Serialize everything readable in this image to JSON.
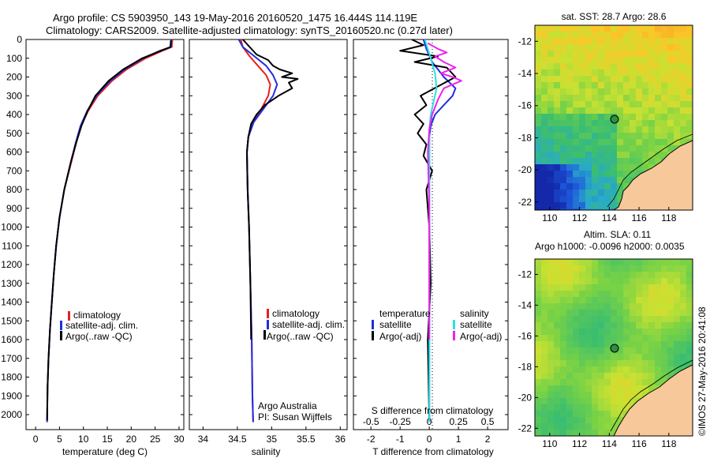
{
  "header": {
    "line1": "Argo profile: CS 5903950_143 19-May-2016 20160520_1475 16.444S 114.119E",
    "line2": "Climatology: CARS2009. Satellite-adjusted climatology: synTS_20160520.nc (0.27d later)"
  },
  "colors": {
    "clim": "#e8201c",
    "sat": "#1f2ee0",
    "argo": "#000000",
    "sat_s": "#2de0e0",
    "argo_s": "#ee22ee",
    "ocean_mid": "#5ec46a",
    "land": "#f7c89a"
  },
  "depth_ticks": [
    "0",
    "100",
    "200",
    "300",
    "400",
    "500",
    "600",
    "700",
    "800",
    "900",
    "1000",
    "1100",
    "1200",
    "1300",
    "1400",
    "1500",
    "1600",
    "1700",
    "1800",
    "1900",
    "2000"
  ],
  "chart_data": [
    {
      "type": "line",
      "xlabel": "temperature (deg C)",
      "xticks": [
        "0",
        "5",
        "10",
        "15",
        "20",
        "25",
        "30"
      ],
      "xlim": [
        -2,
        31
      ],
      "ylim": [
        2080,
        0
      ],
      "legend": [
        "climatology",
        "satellite-adj. clim.",
        "Argo(..raw -QC)"
      ],
      "series": [
        {
          "name": "climatology",
          "color": "clim",
          "x": [
            28.6,
            28.5,
            26.5,
            23,
            19,
            16,
            13,
            11,
            9.5,
            8.5,
            7.5,
            6,
            5,
            4.3,
            3.8,
            3.4,
            3,
            2.7,
            2.5,
            2.4
          ],
          "y": [
            0,
            40,
            60,
            100,
            160,
            220,
            300,
            380,
            460,
            550,
            650,
            800,
            950,
            1100,
            1250,
            1400,
            1550,
            1700,
            1850,
            2040
          ]
        },
        {
          "name": "satellite-adj. clim.",
          "color": "sat",
          "x": [
            28.4,
            28.3,
            26,
            22.5,
            18.6,
            15.6,
            12.7,
            10.8,
            9.4,
            8.4,
            7.4,
            6,
            5,
            4.3,
            3.8,
            3.4,
            3,
            2.7,
            2.5,
            2.4
          ],
          "y": [
            0,
            40,
            60,
            100,
            160,
            220,
            300,
            380,
            460,
            550,
            650,
            800,
            950,
            1100,
            1250,
            1400,
            1550,
            1700,
            1850,
            2040
          ]
        },
        {
          "name": "Argo(..raw -QC)",
          "color": "argo",
          "x": [
            28.3,
            28.2,
            26.2,
            22.3,
            18.3,
            15.3,
            12.5,
            10.9,
            9.6,
            8.5,
            7.4,
            6,
            5,
            4.3,
            3.8,
            3.4,
            3,
            2.7,
            2.5,
            2.4
          ],
          "y": [
            5,
            40,
            60,
            100,
            160,
            220,
            300,
            380,
            460,
            550,
            650,
            800,
            950,
            1100,
            1250,
            1400,
            1550,
            1700,
            1850,
            2030
          ]
        }
      ]
    },
    {
      "type": "line",
      "xlabel": "salinity",
      "xticks": [
        "34",
        "34.5",
        "35",
        "35.5",
        "36"
      ],
      "xlim": [
        33.8,
        36.1
      ],
      "ylim": [
        2080,
        0
      ],
      "legend": [
        "climatology",
        "satellite-adj. clim.",
        " Argo(..raw -QC)"
      ],
      "annotation": [
        "Argo Australia",
        "PI: Susan Wijffels"
      ],
      "series": [
        {
          "name": "climatology",
          "color": "clim",
          "x": [
            34.55,
            34.58,
            34.68,
            34.8,
            34.92,
            34.98,
            34.95,
            34.85,
            34.72,
            34.66,
            34.64,
            34.65,
            34.67,
            34.69,
            34.71,
            34.72,
            34.73
          ],
          "y": [
            0,
            40,
            90,
            140,
            190,
            240,
            300,
            370,
            440,
            520,
            600,
            800,
            1000,
            1300,
            1600,
            1900,
            2040
          ]
        },
        {
          "name": "satellite-adj. clim.",
          "color": "sat",
          "x": [
            34.52,
            34.58,
            34.75,
            34.92,
            35.02,
            35.08,
            35.02,
            34.88,
            34.74,
            34.66,
            34.64,
            34.65,
            34.67,
            34.69,
            34.71,
            34.72,
            34.73
          ],
          "y": [
            0,
            40,
            90,
            140,
            190,
            240,
            300,
            370,
            440,
            520,
            600,
            800,
            1000,
            1300,
            1600,
            1900,
            2040
          ]
        },
        {
          "name": "Argo(..raw -QC)",
          "color": "argo",
          "x": [
            34.58,
            34.68,
            34.78,
            34.95,
            35.02,
            35.12,
            35.3,
            35.15,
            35.38,
            35.25,
            35.3,
            35.1,
            34.9,
            34.78,
            34.7,
            34.66,
            34.64,
            34.65,
            34.67,
            34.69,
            34.7
          ],
          "y": [
            0,
            40,
            80,
            110,
            140,
            160,
            180,
            200,
            210,
            230,
            260,
            300,
            350,
            400,
            450,
            520,
            600,
            800,
            1000,
            1300,
            1600
          ]
        }
      ]
    },
    {
      "type": "line",
      "xlabel_s": "S difference from climatology",
      "xticks_s": [
        "-0.5",
        "-0.25",
        "0",
        "0.25",
        "0.5"
      ],
      "xlabel": "T difference from climatology",
      "xticks": [
        "-2",
        "-1",
        "0",
        "1",
        "2"
      ],
      "xlim": [
        -2.6,
        2.7
      ],
      "ylim": [
        2080,
        0
      ],
      "legend_left": [
        "temperature",
        "satellite",
        "Argo(-adj)"
      ],
      "legend_right": [
        "salinity",
        "satellite",
        "Argo(-adj)"
      ],
      "series": [
        {
          "name": "satellite",
          "color": "sat",
          "x": [
            -0.2,
            -0.1,
            0.1,
            0.5,
            0.9,
            0.8,
            0.5,
            0.2,
            0.05,
            0,
            0,
            0,
            0
          ],
          "y": [
            0,
            50,
            120,
            200,
            260,
            300,
            350,
            400,
            460,
            520,
            800,
            1300,
            2040
          ]
        },
        {
          "name": "Argo(-adj)",
          "color": "argo",
          "x": [
            -0.6,
            -0.2,
            -1.0,
            0.3,
            -0.5,
            0.6,
            0.9,
            0.3,
            -0.3,
            -0.1,
            -0.5,
            -0.2,
            -0.4,
            -0.1,
            -0.2,
            0.1,
            -0.1,
            0,
            0.05,
            -0.05,
            0
          ],
          "y": [
            0,
            30,
            60,
            90,
            120,
            150,
            200,
            250,
            300,
            350,
            400,
            450,
            500,
            560,
            620,
            700,
            800,
            1000,
            1300,
            1600,
            2030
          ]
        },
        {
          "name": "satellite",
          "color": "sat_s",
          "x": [
            -0.15,
            -0.05,
            0.05,
            0.2,
            0.25,
            0.15,
            0.05,
            0,
            0,
            0,
            0
          ],
          "y": [
            0,
            50,
            100,
            180,
            260,
            330,
            400,
            480,
            700,
            1300,
            2040
          ]
        },
        {
          "name": "Argo(-adj)",
          "color": "argo_s",
          "x": [
            -0.05,
            0.3,
            0.6,
            0.2,
            0.5,
            0.9,
            0.4,
            0.8,
            1.1,
            0.5,
            0.3,
            0.1,
            0,
            -0.05,
            0,
            0
          ],
          "y": [
            20,
            50,
            70,
            90,
            120,
            150,
            180,
            200,
            220,
            260,
            320,
            400,
            480,
            600,
            900,
            1600
          ]
        }
      ]
    }
  ],
  "sst": {
    "title": "sat. SST: 28.7 Argo: 28.6",
    "yticks": [
      "-12",
      "-14",
      "-16",
      "-18",
      "-20",
      "-22"
    ],
    "xticks": [
      "110",
      "112",
      "114",
      "116",
      "118"
    ]
  },
  "sla": {
    "title1": "Altim. SLA: 0.11",
    "title2": "Argo h1000: -0.0096 h2000: 0.0035",
    "yticks": [
      "-12",
      "-14",
      "-16",
      "-18",
      "-20",
      "-22"
    ],
    "xticks": [
      "110",
      "112",
      "114",
      "116",
      "118"
    ]
  },
  "footer": "©IMOS 27-May-2016 20:41:08"
}
